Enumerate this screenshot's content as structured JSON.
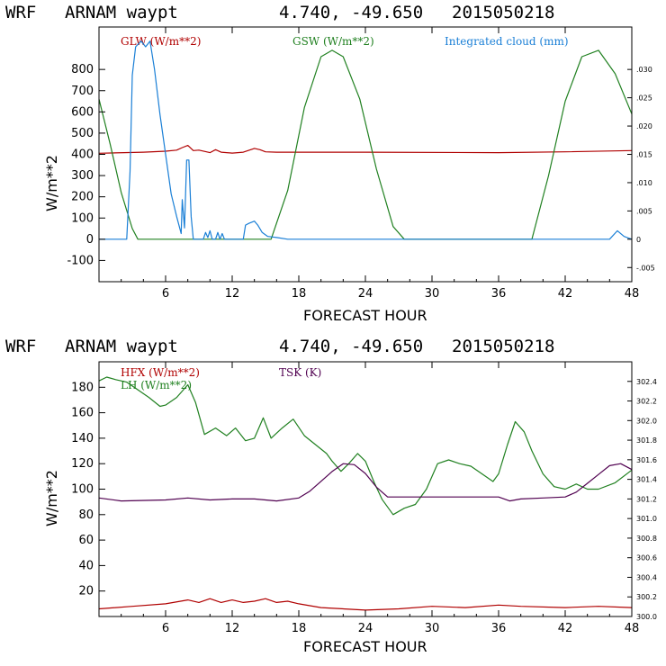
{
  "chart_data": [
    {
      "type": "line",
      "header": {
        "model": "WRF",
        "site": "ARNAM waypt",
        "coords": "4.740, -49.650",
        "run": "2015050218"
      },
      "xlabel": "FORECAST HOUR",
      "ylabel": "W/m**2",
      "xlim": [
        0,
        48
      ],
      "x_ticks": [
        "6",
        "12",
        "18",
        "24",
        "30",
        "36",
        "42",
        "48"
      ],
      "ylim": [
        -200,
        1000
      ],
      "y_ticks": [
        "-100",
        "0",
        "100",
        "200",
        "300",
        "400",
        "500",
        "600",
        "700",
        "800"
      ],
      "y2lim": [
        -0.0075,
        0.0375
      ],
      "y2_ticks": [
        "-.005",
        "0",
        ".005",
        ".010",
        ".015",
        ".020",
        ".025",
        ".030"
      ],
      "legend": {
        "glw": "GLW (W/m**2)",
        "gsw": "GSW (W/m**2)",
        "cloud": "Integrated cloud (mm)"
      },
      "colors": {
        "glw": "#b00000",
        "gsw": "#208020",
        "cloud": "#1a7fd6"
      },
      "series": [
        {
          "name": "GLW (W/m**2)",
          "color": "#b00000",
          "axis": "left",
          "x": [
            0,
            4,
            6,
            7,
            7.5,
            8,
            8.5,
            9,
            10,
            10.5,
            11,
            12,
            13,
            14,
            14.5,
            15,
            16,
            24,
            36,
            42,
            48
          ],
          "values": [
            405,
            410,
            415,
            420,
            432,
            442,
            418,
            420,
            408,
            422,
            410,
            406,
            410,
            428,
            422,
            412,
            410,
            410,
            408,
            412,
            418
          ]
        },
        {
          "name": "GSW (W/m**2)",
          "color": "#208020",
          "axis": "left",
          "x": [
            0,
            1,
            2,
            3,
            3.5,
            15.5,
            17,
            18.5,
            20,
            21,
            22,
            23.5,
            25,
            26.5,
            27.5,
            39,
            40.5,
            42,
            43.5,
            45,
            46.5,
            48
          ],
          "values": [
            660,
            450,
            220,
            50,
            0,
            0,
            230,
            620,
            860,
            890,
            860,
            660,
            330,
            60,
            0,
            0,
            300,
            650,
            860,
            890,
            780,
            590
          ]
        },
        {
          "name": "Integrated cloud (mm)",
          "color": "#1a7fd6",
          "axis": "right",
          "x": [
            0,
            2.5,
            2.8,
            3,
            3.3,
            3.8,
            4.2,
            4.6,
            5,
            5.5,
            6,
            6.5,
            7,
            7.4,
            7.5,
            7.7,
            7.9,
            8.1,
            8.3,
            8.5,
            9.4,
            9.6,
            9.8,
            10,
            10.2,
            10.5,
            10.7,
            10.9,
            11.1,
            11.3,
            13.0,
            13.2,
            13.5,
            14,
            14.3,
            14.7,
            15.2,
            16,
            17,
            46,
            46.7,
            47.3,
            48
          ],
          "values": [
            0,
            0,
            0.012,
            0.029,
            0.034,
            0.035,
            0.034,
            0.035,
            0.03,
            0.022,
            0.015,
            0.008,
            0.004,
            0.001,
            0.007,
            0.002,
            0.014,
            0.014,
            0.004,
            0,
            0,
            0.0012,
            0.0003,
            0.0015,
            0,
            0,
            0.0012,
            0,
            0.001,
            0,
            0,
            0.0025,
            0.0028,
            0.0032,
            0.0025,
            0.0012,
            0.0005,
            0.0003,
            0,
            0,
            0.0015,
            0.0005,
            0
          ]
        }
      ]
    },
    {
      "type": "line",
      "header": {
        "model": "WRF",
        "site": "ARNAM waypt",
        "coords": "4.740, -49.650",
        "run": "2015050218"
      },
      "xlabel": "FORECAST HOUR",
      "ylabel": "W/m**2",
      "xlim": [
        0,
        48
      ],
      "x_ticks": [
        "6",
        "12",
        "18",
        "24",
        "30",
        "36",
        "42",
        "48"
      ],
      "ylim": [
        0,
        200
      ],
      "y_ticks": [
        "20",
        "40",
        "60",
        "80",
        "100",
        "120",
        "140",
        "160",
        "180"
      ],
      "y2lim": [
        300.0,
        302.6
      ],
      "y2_ticks": [
        "300.0",
        "300.2",
        "300.4",
        "300.6",
        "300.8",
        "301.0",
        "301.2",
        "301.4",
        "301.6",
        "301.8",
        "302.0",
        "302.2",
        "302.4"
      ],
      "legend": {
        "hfx": "HFX (W/m**2)",
        "lh": "LH  (W/m**2)",
        "tsk": "TSK (K)"
      },
      "colors": {
        "hfx": "#b00000",
        "lh": "#208020",
        "tsk": "#500050"
      },
      "series": [
        {
          "name": "HFX (W/m**2)",
          "color": "#b00000",
          "axis": "left",
          "x": [
            0,
            3,
            6,
            8,
            9,
            10,
            11,
            12,
            13,
            14,
            15,
            16,
            17,
            18,
            20,
            24,
            27,
            30,
            33,
            36,
            38,
            42,
            45,
            48
          ],
          "values": [
            6,
            8,
            10,
            13,
            11,
            14,
            11,
            13,
            11,
            12,
            14,
            11,
            12,
            10,
            7,
            5,
            6,
            8,
            7,
            9,
            8,
            7,
            8,
            7
          ]
        },
        {
          "name": "LH  (W/m**2)",
          "color": "#208020",
          "axis": "left",
          "x": [
            0,
            0.7,
            1.5,
            2.5,
            3.5,
            4.5,
            5.5,
            6,
            7,
            8,
            8.7,
            9.5,
            10.5,
            11.5,
            12.3,
            13.2,
            14,
            14.8,
            15.5,
            16.5,
            17.5,
            18.5,
            19.5,
            20.5,
            21,
            21.8,
            22.5,
            23.3,
            24,
            24.8,
            25.5,
            26.5,
            27.5,
            28.5,
            29.5,
            30.5,
            31.5,
            32.5,
            33.5,
            34.5,
            35.5,
            36,
            36.8,
            37.5,
            38.3,
            39,
            40,
            41,
            42,
            43,
            44,
            45,
            46.5,
            48
          ],
          "values": [
            185,
            188,
            186,
            184,
            178,
            172,
            165,
            166,
            172,
            182,
            168,
            143,
            148,
            142,
            148,
            138,
            140,
            156,
            140,
            148,
            155,
            142,
            135,
            128,
            122,
            114,
            120,
            128,
            122,
            105,
            92,
            80,
            85,
            88,
            100,
            120,
            123,
            120,
            118,
            112,
            106,
            112,
            135,
            153,
            145,
            130,
            112,
            102,
            100,
            104,
            100,
            100,
            105,
            115
          ]
        },
        {
          "name": "TSK (K)",
          "color": "#500050",
          "axis": "right",
          "x": [
            0,
            2,
            6,
            8,
            10,
            12,
            14,
            16,
            18,
            19,
            20,
            21,
            22,
            23,
            24,
            25,
            26,
            28,
            32,
            36,
            37,
            38,
            40,
            42,
            43,
            44,
            45,
            46,
            47,
            48
          ],
          "values": [
            301.21,
            301.18,
            301.19,
            301.21,
            301.19,
            301.2,
            301.2,
            301.18,
            301.21,
            301.28,
            301.38,
            301.48,
            301.56,
            301.55,
            301.46,
            301.32,
            301.22,
            301.22,
            301.22,
            301.22,
            301.18,
            301.2,
            301.21,
            301.22,
            301.27,
            301.36,
            301.45,
            301.54,
            301.56,
            301.5
          ]
        }
      ]
    }
  ]
}
